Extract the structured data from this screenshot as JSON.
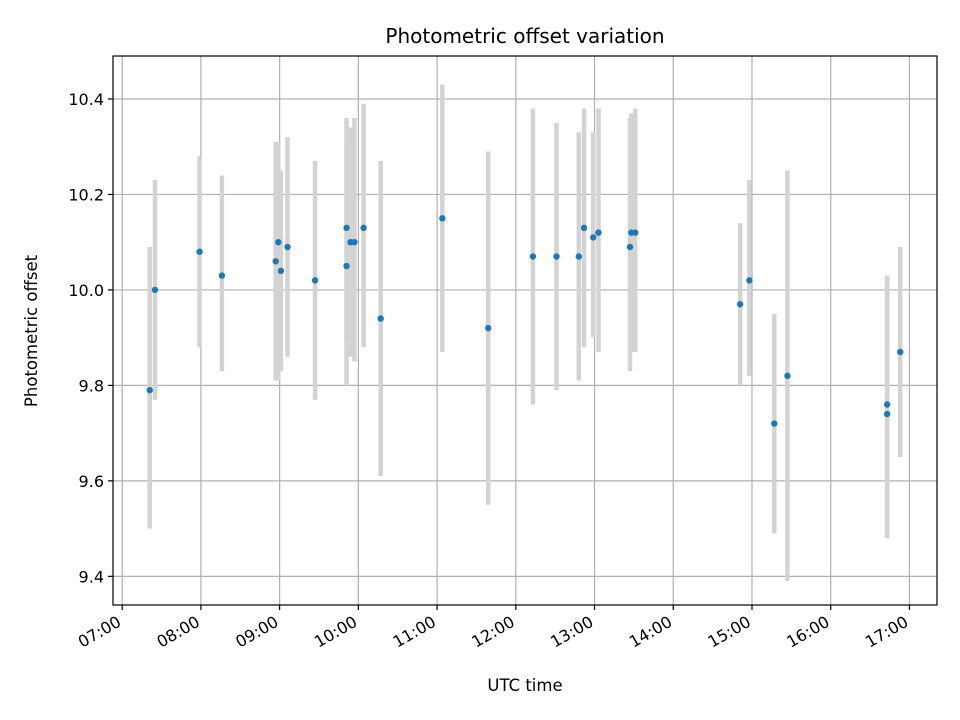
{
  "chart_data": {
    "type": "scatter",
    "title": "Photometric offset variation",
    "xlabel": "UTC time",
    "ylabel": "Photometric offset",
    "x_ticks": [
      "07:00",
      "08:00",
      "09:00",
      "10:00",
      "11:00",
      "12:00",
      "13:00",
      "14:00",
      "15:00",
      "16:00",
      "17:00"
    ],
    "y_ticks": [
      "9.4",
      "9.6",
      "9.8",
      "10.0",
      "10.2",
      "10.4"
    ],
    "xlim": [
      "06:53",
      "17:21"
    ],
    "ylim": [
      9.34,
      10.49
    ],
    "grid": true,
    "colors": {
      "marker": "#1f77b4",
      "errorbar": "#d3d3d3",
      "grid": "#b0b0b0"
    },
    "points": [
      {
        "time": "07:21",
        "y": 9.79,
        "err_low": 9.5,
        "err_high": 10.09
      },
      {
        "time": "07:25",
        "y": 10.0,
        "err_low": 9.77,
        "err_high": 10.23
      },
      {
        "time": "07:59",
        "y": 10.08,
        "err_low": 9.88,
        "err_high": 10.28
      },
      {
        "time": "08:16",
        "y": 10.03,
        "err_low": 9.83,
        "err_high": 10.24
      },
      {
        "time": "08:57",
        "y": 10.06,
        "err_low": 9.81,
        "err_high": 10.31
      },
      {
        "time": "08:59",
        "y": 10.1,
        "err_low": 9.81,
        "err_high": 10.31
      },
      {
        "time": "09:01",
        "y": 10.04,
        "err_low": 9.83,
        "err_high": 10.25
      },
      {
        "time": "09:06",
        "y": 10.09,
        "err_low": 9.86,
        "err_high": 10.32
      },
      {
        "time": "09:27",
        "y": 10.02,
        "err_low": 9.77,
        "err_high": 10.27
      },
      {
        "time": "09:51",
        "y": 10.13,
        "err_low": 9.9,
        "err_high": 10.36
      },
      {
        "time": "09:51",
        "y": 10.05,
        "err_low": 9.8,
        "err_high": 10.3
      },
      {
        "time": "09:54",
        "y": 10.1,
        "err_low": 9.86,
        "err_high": 10.34
      },
      {
        "time": "09:57",
        "y": 10.1,
        "err_low": 9.85,
        "err_high": 10.36
      },
      {
        "time": "10:04",
        "y": 10.13,
        "err_low": 9.88,
        "err_high": 10.39
      },
      {
        "time": "10:17",
        "y": 9.94,
        "err_low": 9.61,
        "err_high": 10.27
      },
      {
        "time": "11:04",
        "y": 10.15,
        "err_low": 9.87,
        "err_high": 10.43
      },
      {
        "time": "11:39",
        "y": 9.92,
        "err_low": 9.55,
        "err_high": 10.29
      },
      {
        "time": "12:13",
        "y": 10.07,
        "err_low": 9.76,
        "err_high": 10.38
      },
      {
        "time": "12:31",
        "y": 10.07,
        "err_low": 9.79,
        "err_high": 10.35
      },
      {
        "time": "12:48",
        "y": 10.07,
        "err_low": 9.81,
        "err_high": 10.33
      },
      {
        "time": "12:52",
        "y": 10.13,
        "err_low": 9.88,
        "err_high": 10.38
      },
      {
        "time": "12:59",
        "y": 10.11,
        "err_low": 9.9,
        "err_high": 10.33
      },
      {
        "time": "13:03",
        "y": 10.12,
        "err_low": 9.87,
        "err_high": 10.38
      },
      {
        "time": "13:27",
        "y": 10.09,
        "err_low": 9.83,
        "err_high": 10.36
      },
      {
        "time": "13:28",
        "y": 10.12,
        "err_low": 9.87,
        "err_high": 10.37
      },
      {
        "time": "13:31",
        "y": 10.12,
        "err_low": 9.87,
        "err_high": 10.38
      },
      {
        "time": "14:51",
        "y": 9.97,
        "err_low": 9.8,
        "err_high": 10.14
      },
      {
        "time": "14:58",
        "y": 10.02,
        "err_low": 9.82,
        "err_high": 10.23
      },
      {
        "time": "15:17",
        "y": 9.72,
        "err_low": 9.49,
        "err_high": 9.95
      },
      {
        "time": "15:27",
        "y": 9.82,
        "err_low": 9.39,
        "err_high": 10.25
      },
      {
        "time": "16:43",
        "y": 9.76,
        "err_low": 9.48,
        "err_high": 10.03
      },
      {
        "time": "16:43",
        "y": 9.74,
        "err_low": 9.48,
        "err_high": 10.03
      },
      {
        "time": "16:53",
        "y": 9.87,
        "err_low": 9.65,
        "err_high": 10.09
      }
    ]
  }
}
